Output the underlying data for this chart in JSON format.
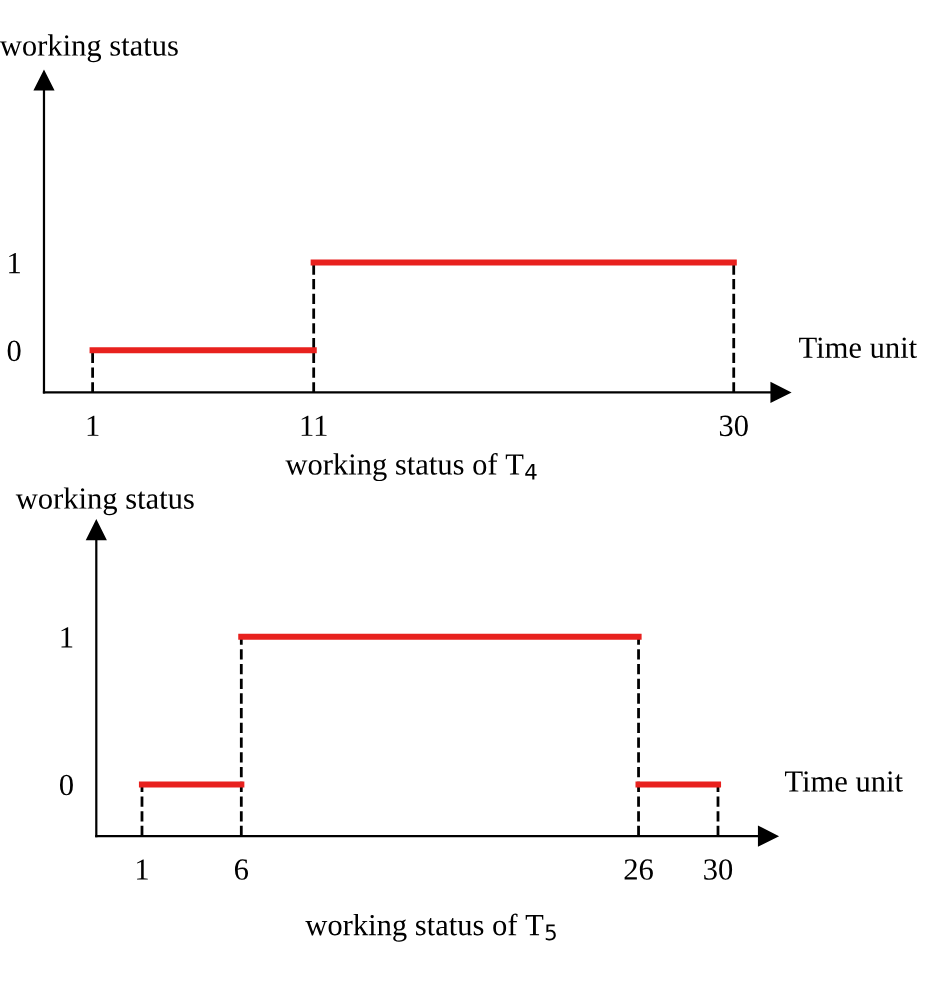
{
  "chart_data": [
    {
      "type": "line",
      "title": "working status of T$_{4}$",
      "xlabel": "Time unit",
      "ylabel": "working status",
      "xlim": [
        -1.2,
        32.1
      ],
      "ylim": [
        -0.48,
        3.07
      ],
      "xticks": [
        1,
        11,
        30
      ],
      "yticks": [
        0,
        1
      ],
      "series": [
        {
          "color": "#e8211e",
          "line_style": "solid",
          "x": [
            1,
            11
          ],
          "values": [
            0,
            0
          ]
        },
        {
          "color": "#e8211e",
          "line_style": "solid",
          "x": [
            11,
            30
          ],
          "values": [
            1,
            1
          ]
        }
      ],
      "ref_lines": [
        {
          "axis": "x",
          "value": 1,
          "color": "#000000",
          "line_style": "dashed"
        },
        {
          "axis": "x",
          "value": 11,
          "color": "#000000",
          "line_style": "dashed"
        },
        {
          "axis": "x",
          "value": 30,
          "color": "#000000",
          "line_style": "dashed"
        }
      ]
    },
    {
      "type": "line",
      "title": "working status of T$_{5}$",
      "xlabel": "Time unit",
      "ylabel": "working status",
      "xlim": [
        -1.3,
        32.5
      ],
      "ylim": [
        -0.35,
        1.72
      ],
      "xticks": [
        1,
        6,
        26,
        30
      ],
      "yticks": [
        0,
        1
      ],
      "series": [
        {
          "color": "#e8211e",
          "line_style": "solid",
          "x": [
            1,
            6
          ],
          "values": [
            0,
            0
          ]
        },
        {
          "color": "#e8211e",
          "line_style": "solid",
          "x": [
            6,
            26
          ],
          "values": [
            1,
            1
          ]
        },
        {
          "color": "#e8211e",
          "line_style": "solid",
          "x": [
            26,
            30
          ],
          "values": [
            0,
            0
          ]
        }
      ],
      "ref_lines": [
        {
          "axis": "x",
          "value": 1,
          "color": "#000000",
          "line_style": "dashed"
        },
        {
          "axis": "x",
          "value": 6,
          "color": "#000000",
          "line_style": "dashed"
        },
        {
          "axis": "x",
          "value": 26,
          "color": "#000000",
          "line_style": "dashed"
        },
        {
          "axis": "x",
          "value": 30,
          "color": "#000000",
          "line_style": "dashed"
        }
      ]
    }
  ]
}
